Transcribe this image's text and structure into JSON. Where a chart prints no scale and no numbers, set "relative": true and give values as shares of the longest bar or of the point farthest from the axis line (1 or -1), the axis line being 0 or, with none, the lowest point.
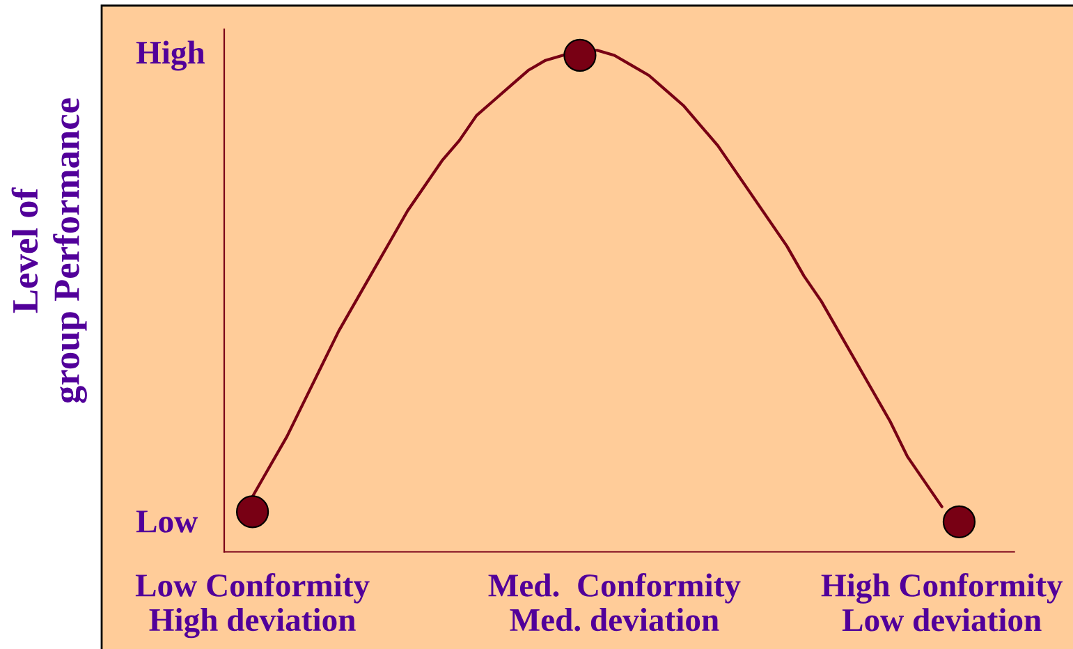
{
  "chart_data": {
    "type": "line",
    "relative": true,
    "ylabel": "Level of\ngroup Performance",
    "categories": [
      "Low Conformity\nHigh deviation",
      null,
      null,
      null,
      null,
      null,
      null,
      null,
      null,
      null,
      null,
      null,
      null,
      null,
      null,
      null,
      null,
      null,
      null,
      null,
      null,
      "Med.  Conformity\nMed. deviation",
      null,
      null,
      null,
      null,
      null,
      null,
      null,
      null,
      null,
      null,
      null,
      null,
      null,
      null,
      null,
      null,
      null,
      null,
      "High Conformity\nLow deviation",
      null
    ],
    "annotations": [
      "High",
      "Low"
    ],
    "series": [
      {
        "color": "#780014",
        "values": [
          0.11,
          0.17,
          0.23,
          0.3,
          0.37,
          0.44,
          0.5,
          0.56,
          0.62,
          0.68,
          0.73,
          0.78,
          0.82,
          0.87,
          0.9,
          0.93,
          0.96,
          0.98,
          0.99,
          1.0,
          1.0,
          0.99,
          0.97,
          0.95,
          0.92,
          0.89,
          0.85,
          0.81,
          0.76,
          0.71,
          0.66,
          0.61,
          0.55,
          0.5,
          0.44,
          0.38,
          0.32,
          0.26,
          0.19,
          0.14,
          0.09,
          null
        ]
      },
      {
        "type": "scatter",
        "color": "#780014",
        "marker": "circle",
        "values": [
          0.08,
          null,
          null,
          null,
          null,
          null,
          null,
          null,
          null,
          null,
          null,
          null,
          null,
          null,
          null,
          null,
          null,
          null,
          null,
          0.99,
          null,
          null,
          null,
          null,
          null,
          null,
          null,
          null,
          null,
          null,
          null,
          null,
          null,
          null,
          null,
          null,
          null,
          null,
          null,
          null,
          null,
          0.06
        ]
      }
    ]
  }
}
